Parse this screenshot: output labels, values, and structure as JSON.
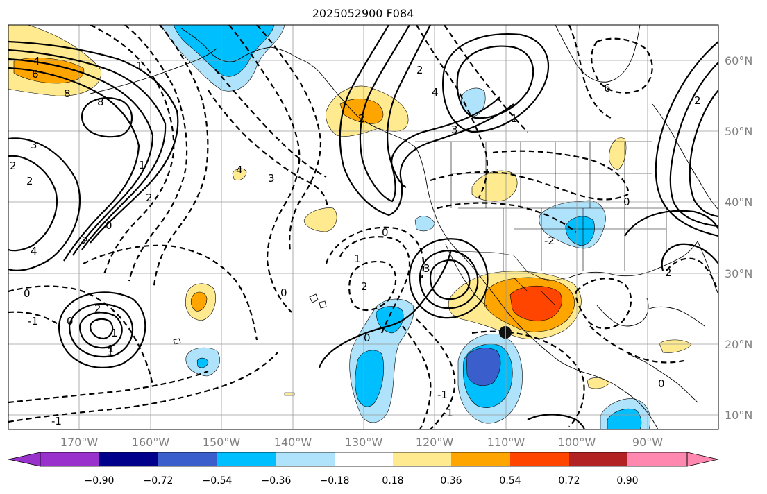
{
  "title": "2025052900 F084",
  "lat_labels": [
    "60°N",
    "50°N",
    "40°N",
    "30°N",
    "20°N",
    "10°N"
  ],
  "lon_labels": [
    "170°W",
    "160°W",
    "150°W",
    "140°W",
    "130°W",
    "120°W",
    "110°W",
    "100°W",
    "90°W"
  ],
  "colorbar": {
    "ticks": [
      "−0.90",
      "−0.72",
      "−0.54",
      "−0.36",
      "−0.18",
      "0.18",
      "0.36",
      "0.54",
      "0.72",
      "0.90"
    ],
    "colors": [
      "#9932cc",
      "#00008b",
      "#3a5fcd",
      "#00bfff",
      "#aee3fb",
      "#ffffff",
      "#ffea8f",
      "#ffa500",
      "#ff4500",
      "#b22222",
      "#ff88b0"
    ]
  },
  "shading_colors": {
    "light_blue": "#aee3fb",
    "blue": "#00bfff",
    "dark_blue": "#3a5fcd",
    "yellow": "#ffea8f",
    "orange": "#ffa500",
    "red": "#ff4500"
  },
  "contour_labels": [
    "4",
    "6",
    "8",
    "8",
    "3",
    "2",
    "2",
    "2",
    "0",
    "1",
    "2",
    "4",
    "0",
    "-1",
    "1",
    "2",
    "1",
    "-1",
    "0",
    "0",
    "2",
    "3",
    "4",
    "3",
    "1",
    "2",
    "0",
    "1",
    "1",
    "-1",
    "3",
    "2",
    "1",
    "6",
    "4",
    "2",
    "-2",
    "0",
    "0",
    "2",
    "-1",
    "0"
  ]
}
